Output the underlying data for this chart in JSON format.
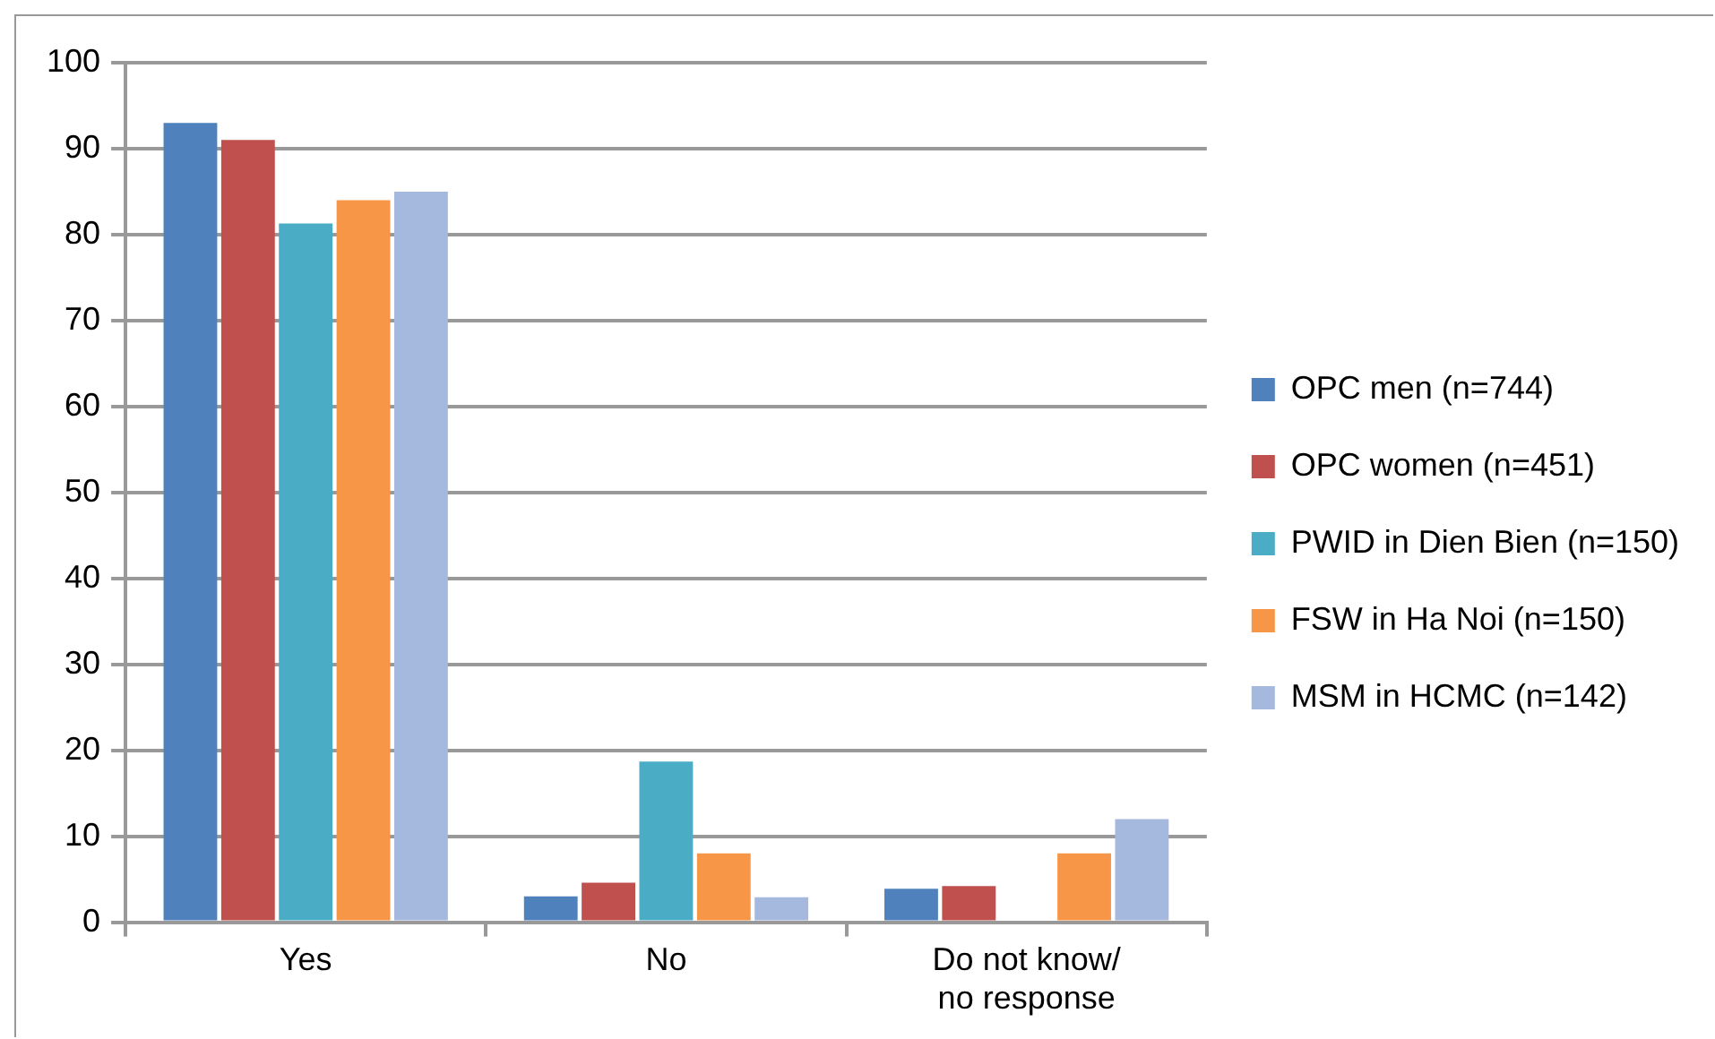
{
  "chart_data": {
    "type": "bar",
    "categories": [
      "Yes",
      "No",
      "Do not know/ no response"
    ],
    "series": [
      {
        "name": "OPC men (n=744)",
        "color": "#4f81bd",
        "values": [
          93,
          3,
          3.9
        ]
      },
      {
        "name": "OPC women (n=451)",
        "color": "#c0504d",
        "values": [
          91,
          4.6,
          4.2
        ]
      },
      {
        "name": "PWID in Dien Bien (n=150)",
        "color": "#4bacc6",
        "values": [
          81.3,
          18.7,
          0
        ]
      },
      {
        "name": "FSW in Ha Noi (n=150)",
        "color": "#f79646",
        "values": [
          84,
          8,
          8
        ]
      },
      {
        "name": "MSM in HCMC (n=142)",
        "color": "#a5b8dd",
        "values": [
          85,
          2.9,
          12
        ]
      }
    ],
    "ylim": [
      0,
      100
    ],
    "yticks": [
      0,
      10,
      20,
      30,
      40,
      50,
      60,
      70,
      80,
      90,
      100
    ],
    "grid": "y",
    "legend": "right"
  }
}
